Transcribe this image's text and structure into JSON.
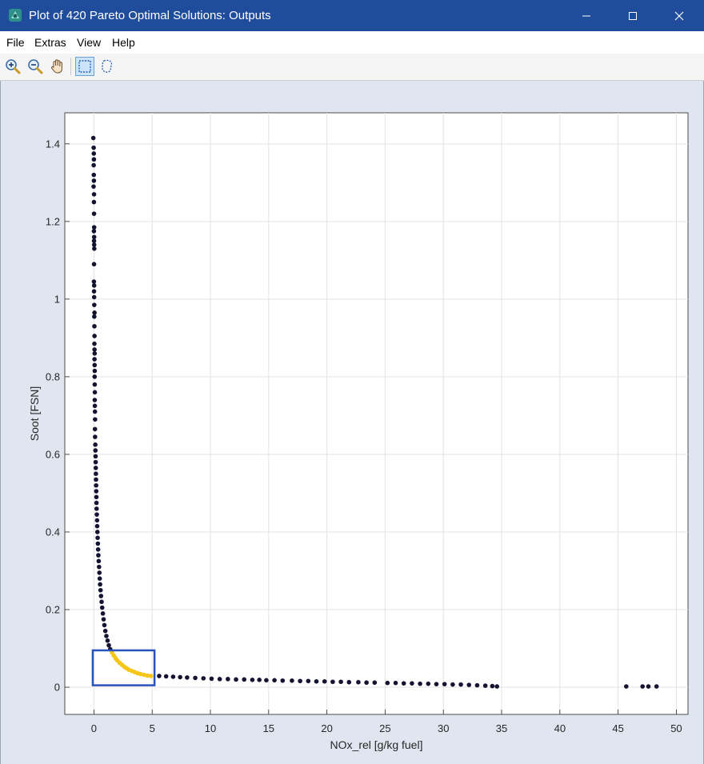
{
  "window": {
    "title": "Plot of 420 Pareto Optimal Solutions: Outputs",
    "icon": "matlab-app-icon",
    "controls": [
      "minimize-icon",
      "maximize-icon",
      "close-icon"
    ]
  },
  "menu": {
    "items": [
      "File",
      "Extras",
      "View",
      "Help"
    ]
  },
  "toolbar": {
    "tools": [
      "zoom-in-icon",
      "zoom-out-icon",
      "pan-hand-icon",
      "rectangle-select-icon",
      "lasso-select-icon"
    ],
    "active_tool": "rectangle-select-icon"
  },
  "chart_data": {
    "type": "scatter",
    "title": "",
    "xlabel": "NOx_rel [g/kg fuel]",
    "ylabel": "Soot [FSN]",
    "xlim": [
      -2.5,
      51
    ],
    "ylim": [
      -0.07,
      1.48
    ],
    "xticks": [
      0,
      5,
      10,
      15,
      20,
      25,
      30,
      35,
      40,
      45,
      50
    ],
    "xtick_labels": [
      "0",
      "5",
      "10",
      "15",
      "20",
      "25",
      "30",
      "35",
      "40",
      "45",
      "50"
    ],
    "yticks": [
      0,
      0.2,
      0.4,
      0.6,
      0.8,
      1.0,
      1.2,
      1.4
    ],
    "ytick_labels": [
      "0",
      "0.2",
      "0.4",
      "0.6",
      "0.8",
      "1",
      "1.2",
      "1.4"
    ],
    "grid": true,
    "point_color": "#141432",
    "highlight_color": "#f5c518",
    "selection_box_color": "#2a52be",
    "selection_box": {
      "x": [
        -0.1,
        5.2
      ],
      "y": [
        0.005,
        0.095
      ]
    },
    "series": [
      {
        "role": "front",
        "points": [
          [
            -0.05,
            1.415
          ],
          [
            -0.02,
            1.39
          ],
          [
            -0.01,
            1.375
          ],
          [
            0.0,
            1.36
          ],
          [
            -0.02,
            1.345
          ],
          [
            -0.01,
            1.32
          ],
          [
            0.0,
            1.305
          ],
          [
            -0.03,
            1.29
          ],
          [
            0.01,
            1.27
          ],
          [
            0.0,
            1.25
          ],
          [
            0.01,
            1.22
          ],
          [
            0.02,
            1.185
          ],
          [
            0.0,
            1.175
          ],
          [
            0.02,
            1.16
          ],
          [
            0.01,
            1.15
          ],
          [
            0.02,
            1.14
          ],
          [
            0.03,
            1.13
          ],
          [
            0.01,
            1.09
          ],
          [
            0.0,
            1.045
          ],
          [
            0.02,
            1.035
          ],
          [
            0.01,
            1.02
          ],
          [
            0.02,
            1.005
          ],
          [
            0.03,
            0.985
          ],
          [
            0.05,
            0.965
          ],
          [
            0.03,
            0.955
          ],
          [
            0.04,
            0.93
          ],
          [
            0.05,
            0.905
          ],
          [
            0.04,
            0.885
          ],
          [
            0.05,
            0.87
          ],
          [
            0.06,
            0.86
          ],
          [
            0.05,
            0.845
          ],
          [
            0.06,
            0.83
          ],
          [
            0.07,
            0.815
          ],
          [
            0.06,
            0.8
          ],
          [
            0.07,
            0.78
          ],
          [
            0.08,
            0.76
          ],
          [
            0.07,
            0.74
          ],
          [
            0.08,
            0.725
          ],
          [
            0.09,
            0.71
          ],
          [
            0.1,
            0.69
          ],
          [
            0.09,
            0.665
          ],
          [
            0.1,
            0.645
          ],
          [
            0.12,
            0.625
          ],
          [
            0.13,
            0.61
          ],
          [
            0.14,
            0.595
          ],
          [
            0.15,
            0.58
          ],
          [
            0.16,
            0.565
          ],
          [
            0.17,
            0.55
          ],
          [
            0.18,
            0.535
          ],
          [
            0.19,
            0.52
          ],
          [
            0.2,
            0.505
          ],
          [
            0.21,
            0.49
          ],
          [
            0.22,
            0.475
          ],
          [
            0.23,
            0.46
          ],
          [
            0.25,
            0.445
          ],
          [
            0.27,
            0.43
          ],
          [
            0.28,
            0.415
          ],
          [
            0.3,
            0.4
          ],
          [
            0.32,
            0.385
          ],
          [
            0.34,
            0.37
          ],
          [
            0.36,
            0.355
          ],
          [
            0.38,
            0.34
          ],
          [
            0.41,
            0.325
          ],
          [
            0.44,
            0.31
          ],
          [
            0.47,
            0.295
          ],
          [
            0.5,
            0.28
          ],
          [
            0.53,
            0.265
          ],
          [
            0.57,
            0.25
          ],
          [
            0.61,
            0.235
          ],
          [
            0.66,
            0.22
          ],
          [
            0.71,
            0.205
          ],
          [
            0.77,
            0.19
          ],
          [
            0.83,
            0.175
          ],
          [
            0.9,
            0.16
          ],
          [
            0.98,
            0.145
          ],
          [
            1.07,
            0.132
          ],
          [
            1.17,
            0.12
          ],
          [
            1.28,
            0.108
          ],
          [
            1.4,
            0.098
          ],
          [
            5.6,
            0.029
          ],
          [
            6.2,
            0.028
          ],
          [
            6.8,
            0.027
          ],
          [
            7.4,
            0.026
          ],
          [
            8.0,
            0.025
          ],
          [
            8.7,
            0.024
          ],
          [
            9.4,
            0.023
          ],
          [
            10.1,
            0.022
          ],
          [
            10.8,
            0.021
          ],
          [
            11.5,
            0.021
          ],
          [
            12.2,
            0.02
          ],
          [
            12.9,
            0.02
          ],
          [
            13.6,
            0.019
          ],
          [
            14.2,
            0.019
          ],
          [
            14.8,
            0.018
          ],
          [
            15.5,
            0.018
          ],
          [
            16.2,
            0.017
          ],
          [
            17.0,
            0.017
          ],
          [
            17.7,
            0.016
          ],
          [
            18.4,
            0.016
          ],
          [
            19.1,
            0.015
          ],
          [
            19.8,
            0.015
          ],
          [
            20.5,
            0.014
          ],
          [
            21.2,
            0.014
          ],
          [
            21.9,
            0.013
          ],
          [
            22.7,
            0.013
          ],
          [
            23.4,
            0.012
          ],
          [
            24.1,
            0.012
          ],
          [
            25.2,
            0.011
          ],
          [
            25.9,
            0.011
          ],
          [
            26.6,
            0.01
          ],
          [
            27.3,
            0.01
          ],
          [
            28.0,
            0.009
          ],
          [
            28.7,
            0.009
          ],
          [
            29.4,
            0.008
          ],
          [
            30.1,
            0.008
          ],
          [
            30.8,
            0.007
          ],
          [
            31.5,
            0.007
          ],
          [
            32.2,
            0.006
          ],
          [
            32.9,
            0.005
          ],
          [
            33.6,
            0.004
          ],
          [
            34.2,
            0.003
          ],
          [
            34.6,
            0.002
          ],
          [
            45.7,
            0.002
          ],
          [
            47.1,
            0.002
          ],
          [
            47.6,
            0.002
          ],
          [
            48.3,
            0.002
          ]
        ]
      },
      {
        "role": "selected",
        "points": [
          [
            1.55,
            0.09
          ],
          [
            1.7,
            0.082
          ],
          [
            1.85,
            0.075
          ],
          [
            2.0,
            0.069
          ],
          [
            2.2,
            0.063
          ],
          [
            2.4,
            0.058
          ],
          [
            2.6,
            0.053
          ],
          [
            2.8,
            0.049
          ],
          [
            3.0,
            0.045
          ],
          [
            3.25,
            0.042
          ],
          [
            3.5,
            0.039
          ],
          [
            3.75,
            0.036
          ],
          [
            4.0,
            0.034
          ],
          [
            4.3,
            0.032
          ],
          [
            4.6,
            0.03
          ],
          [
            4.9,
            0.029
          ]
        ]
      }
    ]
  }
}
